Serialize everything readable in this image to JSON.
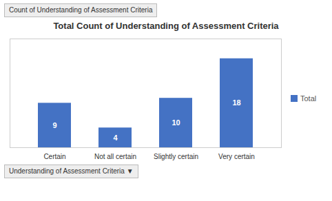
{
  "chart_data": {
    "type": "bar",
    "title": "Total Count of Understanding of Assessment Criteria",
    "annotations": [
      "Count of Understanding of Assessment Criteria",
      "Understanding of Assessment Criteria ▼"
    ],
    "categories": [
      "Certain",
      "Not all certain",
      "Slightly certain",
      "Very certain"
    ],
    "series": [
      {
        "name": "Total",
        "color": "#4472C4",
        "values": [
          9,
          4,
          10,
          18
        ]
      }
    ],
    "ylim": [
      0,
      22
    ],
    "data_labels": true,
    "tick_labels": "x",
    "legend": "right"
  }
}
